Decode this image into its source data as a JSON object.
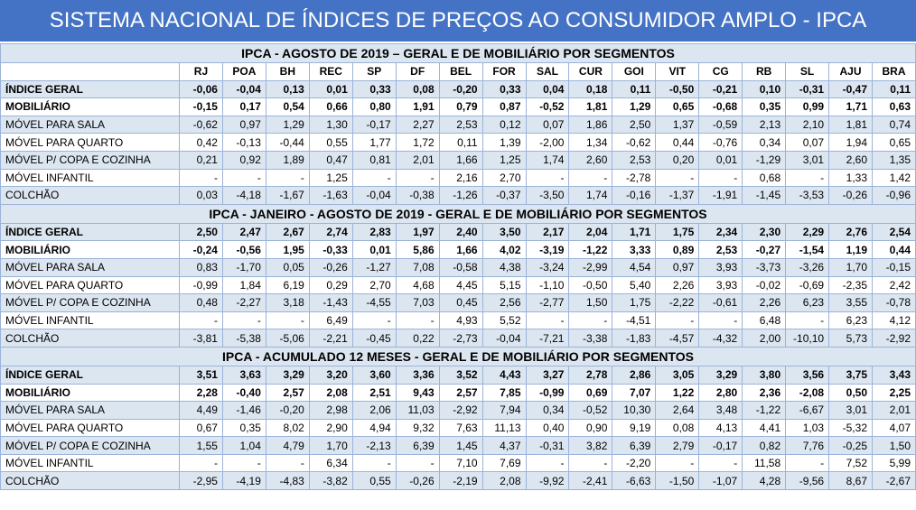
{
  "header": {
    "title": "SISTEMA NACIONAL DE ÍNDICES DE PREÇOS AO CONSUMIDOR AMPLO - IPCA"
  },
  "columns": [
    "RJ",
    "POA",
    "BH",
    "REC",
    "SP",
    "DF",
    "BEL",
    "FOR",
    "SAL",
    "CUR",
    "GOI",
    "VIT",
    "CG",
    "RB",
    "SL",
    "AJU",
    "BRA"
  ],
  "sections": [
    {
      "title": "IPCA - AGOSTO DE 2019 – GERAL E DE MOBILIÁRIO POR SEGMENTOS",
      "rows": [
        {
          "label": "ÍNDICE GERAL",
          "values": [
            "-0,06",
            "-0,04",
            "0,13",
            "0,01",
            "0,33",
            "0,08",
            "-0,20",
            "0,33",
            "0,04",
            "0,18",
            "0,11",
            "-0,50",
            "-0,21",
            "0,10",
            "-0,31",
            "-0,47",
            "0,11"
          ]
        },
        {
          "label": "MOBILIÁRIO",
          "values": [
            "-0,15",
            "0,17",
            "0,54",
            "0,66",
            "0,80",
            "1,91",
            "0,79",
            "0,87",
            "-0,52",
            "1,81",
            "1,29",
            "0,65",
            "-0,68",
            "0,35",
            "0,99",
            "1,71",
            "0,63"
          ]
        },
        {
          "label": "MÓVEL PARA SALA",
          "values": [
            "-0,62",
            "0,97",
            "1,29",
            "1,30",
            "-0,17",
            "2,27",
            "2,53",
            "0,12",
            "0,07",
            "1,86",
            "2,50",
            "1,37",
            "-0,59",
            "2,13",
            "2,10",
            "1,81",
            "0,74"
          ]
        },
        {
          "label": "MÓVEL PARA QUARTO",
          "values": [
            "0,42",
            "-0,13",
            "-0,44",
            "0,55",
            "1,77",
            "1,72",
            "0,11",
            "1,39",
            "-2,00",
            "1,34",
            "-0,62",
            "0,44",
            "-0,76",
            "0,34",
            "0,07",
            "1,94",
            "0,65"
          ]
        },
        {
          "label": "MÓVEL P/ COPA E COZINHA",
          "values": [
            "0,21",
            "0,92",
            "1,89",
            "0,47",
            "0,81",
            "2,01",
            "1,66",
            "1,25",
            "1,74",
            "2,60",
            "2,53",
            "0,20",
            "0,01",
            "-1,29",
            "3,01",
            "2,60",
            "1,35"
          ]
        },
        {
          "label": "MÓVEL INFANTIL",
          "values": [
            "-",
            "-",
            "-",
            "1,25",
            "-",
            "-",
            "2,16",
            "2,70",
            "-",
            "-",
            "-2,78",
            "-",
            "-",
            "0,68",
            "-",
            "1,33",
            "1,42"
          ]
        },
        {
          "label": "COLCHÃO",
          "values": [
            "0,03",
            "-4,18",
            "-1,67",
            "-1,63",
            "-0,04",
            "-0,38",
            "-1,26",
            "-0,37",
            "-3,50",
            "1,74",
            "-0,16",
            "-1,37",
            "-1,91",
            "-1,45",
            "-3,53",
            "-0,26",
            "-0,96"
          ]
        }
      ]
    },
    {
      "title": "IPCA - JANEIRO - AGOSTO DE 2019 - GERAL E DE MOBILIÁRIO POR SEGMENTOS",
      "rows": [
        {
          "label": "ÍNDICE GERAL",
          "values": [
            "2,50",
            "2,47",
            "2,67",
            "2,74",
            "2,83",
            "1,97",
            "2,40",
            "3,50",
            "2,17",
            "2,04",
            "1,71",
            "1,75",
            "2,34",
            "2,30",
            "2,29",
            "2,76",
            "2,54"
          ]
        },
        {
          "label": "MOBILIÁRIO",
          "values": [
            "-0,24",
            "-0,56",
            "1,95",
            "-0,33",
            "0,01",
            "5,86",
            "1,66",
            "4,02",
            "-3,19",
            "-1,22",
            "3,33",
            "0,89",
            "2,53",
            "-0,27",
            "-1,54",
            "1,19",
            "0,44"
          ]
        },
        {
          "label": "MÓVEL PARA SALA",
          "values": [
            "0,83",
            "-1,70",
            "0,05",
            "-0,26",
            "-1,27",
            "7,08",
            "-0,58",
            "4,38",
            "-3,24",
            "-2,99",
            "4,54",
            "0,97",
            "3,93",
            "-3,73",
            "-3,26",
            "1,70",
            "-0,15"
          ]
        },
        {
          "label": "MÓVEL PARA QUARTO",
          "values": [
            "-0,99",
            "1,84",
            "6,19",
            "0,29",
            "2,70",
            "4,68",
            "4,45",
            "5,15",
            "-1,10",
            "-0,50",
            "5,40",
            "2,26",
            "3,93",
            "-0,02",
            "-0,69",
            "-2,35",
            "2,42"
          ]
        },
        {
          "label": "MÓVEL P/ COPA E COZINHA",
          "values": [
            "0,48",
            "-2,27",
            "3,18",
            "-1,43",
            "-4,55",
            "7,03",
            "0,45",
            "2,56",
            "-2,77",
            "1,50",
            "1,75",
            "-2,22",
            "-0,61",
            "2,26",
            "6,23",
            "3,55",
            "-0,78"
          ]
        },
        {
          "label": "MÓVEL INFANTIL",
          "values": [
            "-",
            "-",
            "-",
            "6,49",
            "-",
            "-",
            "4,93",
            "5,52",
            "-",
            "-",
            "-4,51",
            "-",
            "-",
            "6,48",
            "-",
            "6,23",
            "4,12"
          ]
        },
        {
          "label": "COLCHÃO",
          "values": [
            "-3,81",
            "-5,38",
            "-5,06",
            "-2,21",
            "-0,45",
            "0,22",
            "-2,73",
            "-0,04",
            "-7,21",
            "-3,38",
            "-1,83",
            "-4,57",
            "-4,32",
            "2,00",
            "-10,10",
            "5,73",
            "-2,92"
          ]
        }
      ]
    },
    {
      "title": "IPCA - ACUMULADO 12 MESES - GERAL E DE MOBILIÁRIO POR SEGMENTOS",
      "rows": [
        {
          "label": "ÍNDICE GERAL",
          "values": [
            "3,51",
            "3,63",
            "3,29",
            "3,20",
            "3,60",
            "3,36",
            "3,52",
            "4,43",
            "3,27",
            "2,78",
            "2,86",
            "3,05",
            "3,29",
            "3,80",
            "3,56",
            "3,75",
            "3,43"
          ]
        },
        {
          "label": "MOBILIÁRIO",
          "values": [
            "2,28",
            "-0,40",
            "2,57",
            "2,08",
            "2,51",
            "9,43",
            "2,57",
            "7,85",
            "-0,99",
            "0,69",
            "7,07",
            "1,22",
            "2,80",
            "2,36",
            "-2,08",
            "0,50",
            "2,25"
          ]
        },
        {
          "label": "MÓVEL PARA SALA",
          "values": [
            "4,49",
            "-1,46",
            "-0,20",
            "2,98",
            "2,06",
            "11,03",
            "-2,92",
            "7,94",
            "0,34",
            "-0,52",
            "10,30",
            "2,64",
            "3,48",
            "-1,22",
            "-6,67",
            "3,01",
            "2,01"
          ]
        },
        {
          "label": "MÓVEL PARA QUARTO",
          "values": [
            "0,67",
            "0,35",
            "8,02",
            "2,90",
            "4,94",
            "9,32",
            "7,63",
            "11,13",
            "0,40",
            "0,90",
            "9,19",
            "0,08",
            "4,13",
            "4,41",
            "1,03",
            "-5,32",
            "4,07"
          ]
        },
        {
          "label": "MÓVEL P/ COPA E COZINHA",
          "values": [
            "1,55",
            "1,04",
            "4,79",
            "1,70",
            "-2,13",
            "6,39",
            "1,45",
            "4,37",
            "-0,31",
            "3,82",
            "6,39",
            "2,79",
            "-0,17",
            "0,82",
            "7,76",
            "-0,25",
            "1,50"
          ]
        },
        {
          "label": "MÓVEL INFANTIL",
          "values": [
            "-",
            "-",
            "-",
            "6,34",
            "-",
            "-",
            "7,10",
            "7,69",
            "-",
            "-",
            "-2,20",
            "-",
            "-",
            "11,58",
            "-",
            "7,52",
            "5,99"
          ]
        },
        {
          "label": "COLCHÃO",
          "values": [
            "-2,95",
            "-4,19",
            "-4,83",
            "-3,82",
            "0,55",
            "-0,26",
            "-2,19",
            "2,08",
            "-9,92",
            "-2,41",
            "-6,63",
            "-1,50",
            "-1,07",
            "4,28",
            "-9,56",
            "8,67",
            "-2,67"
          ]
        }
      ]
    }
  ]
}
